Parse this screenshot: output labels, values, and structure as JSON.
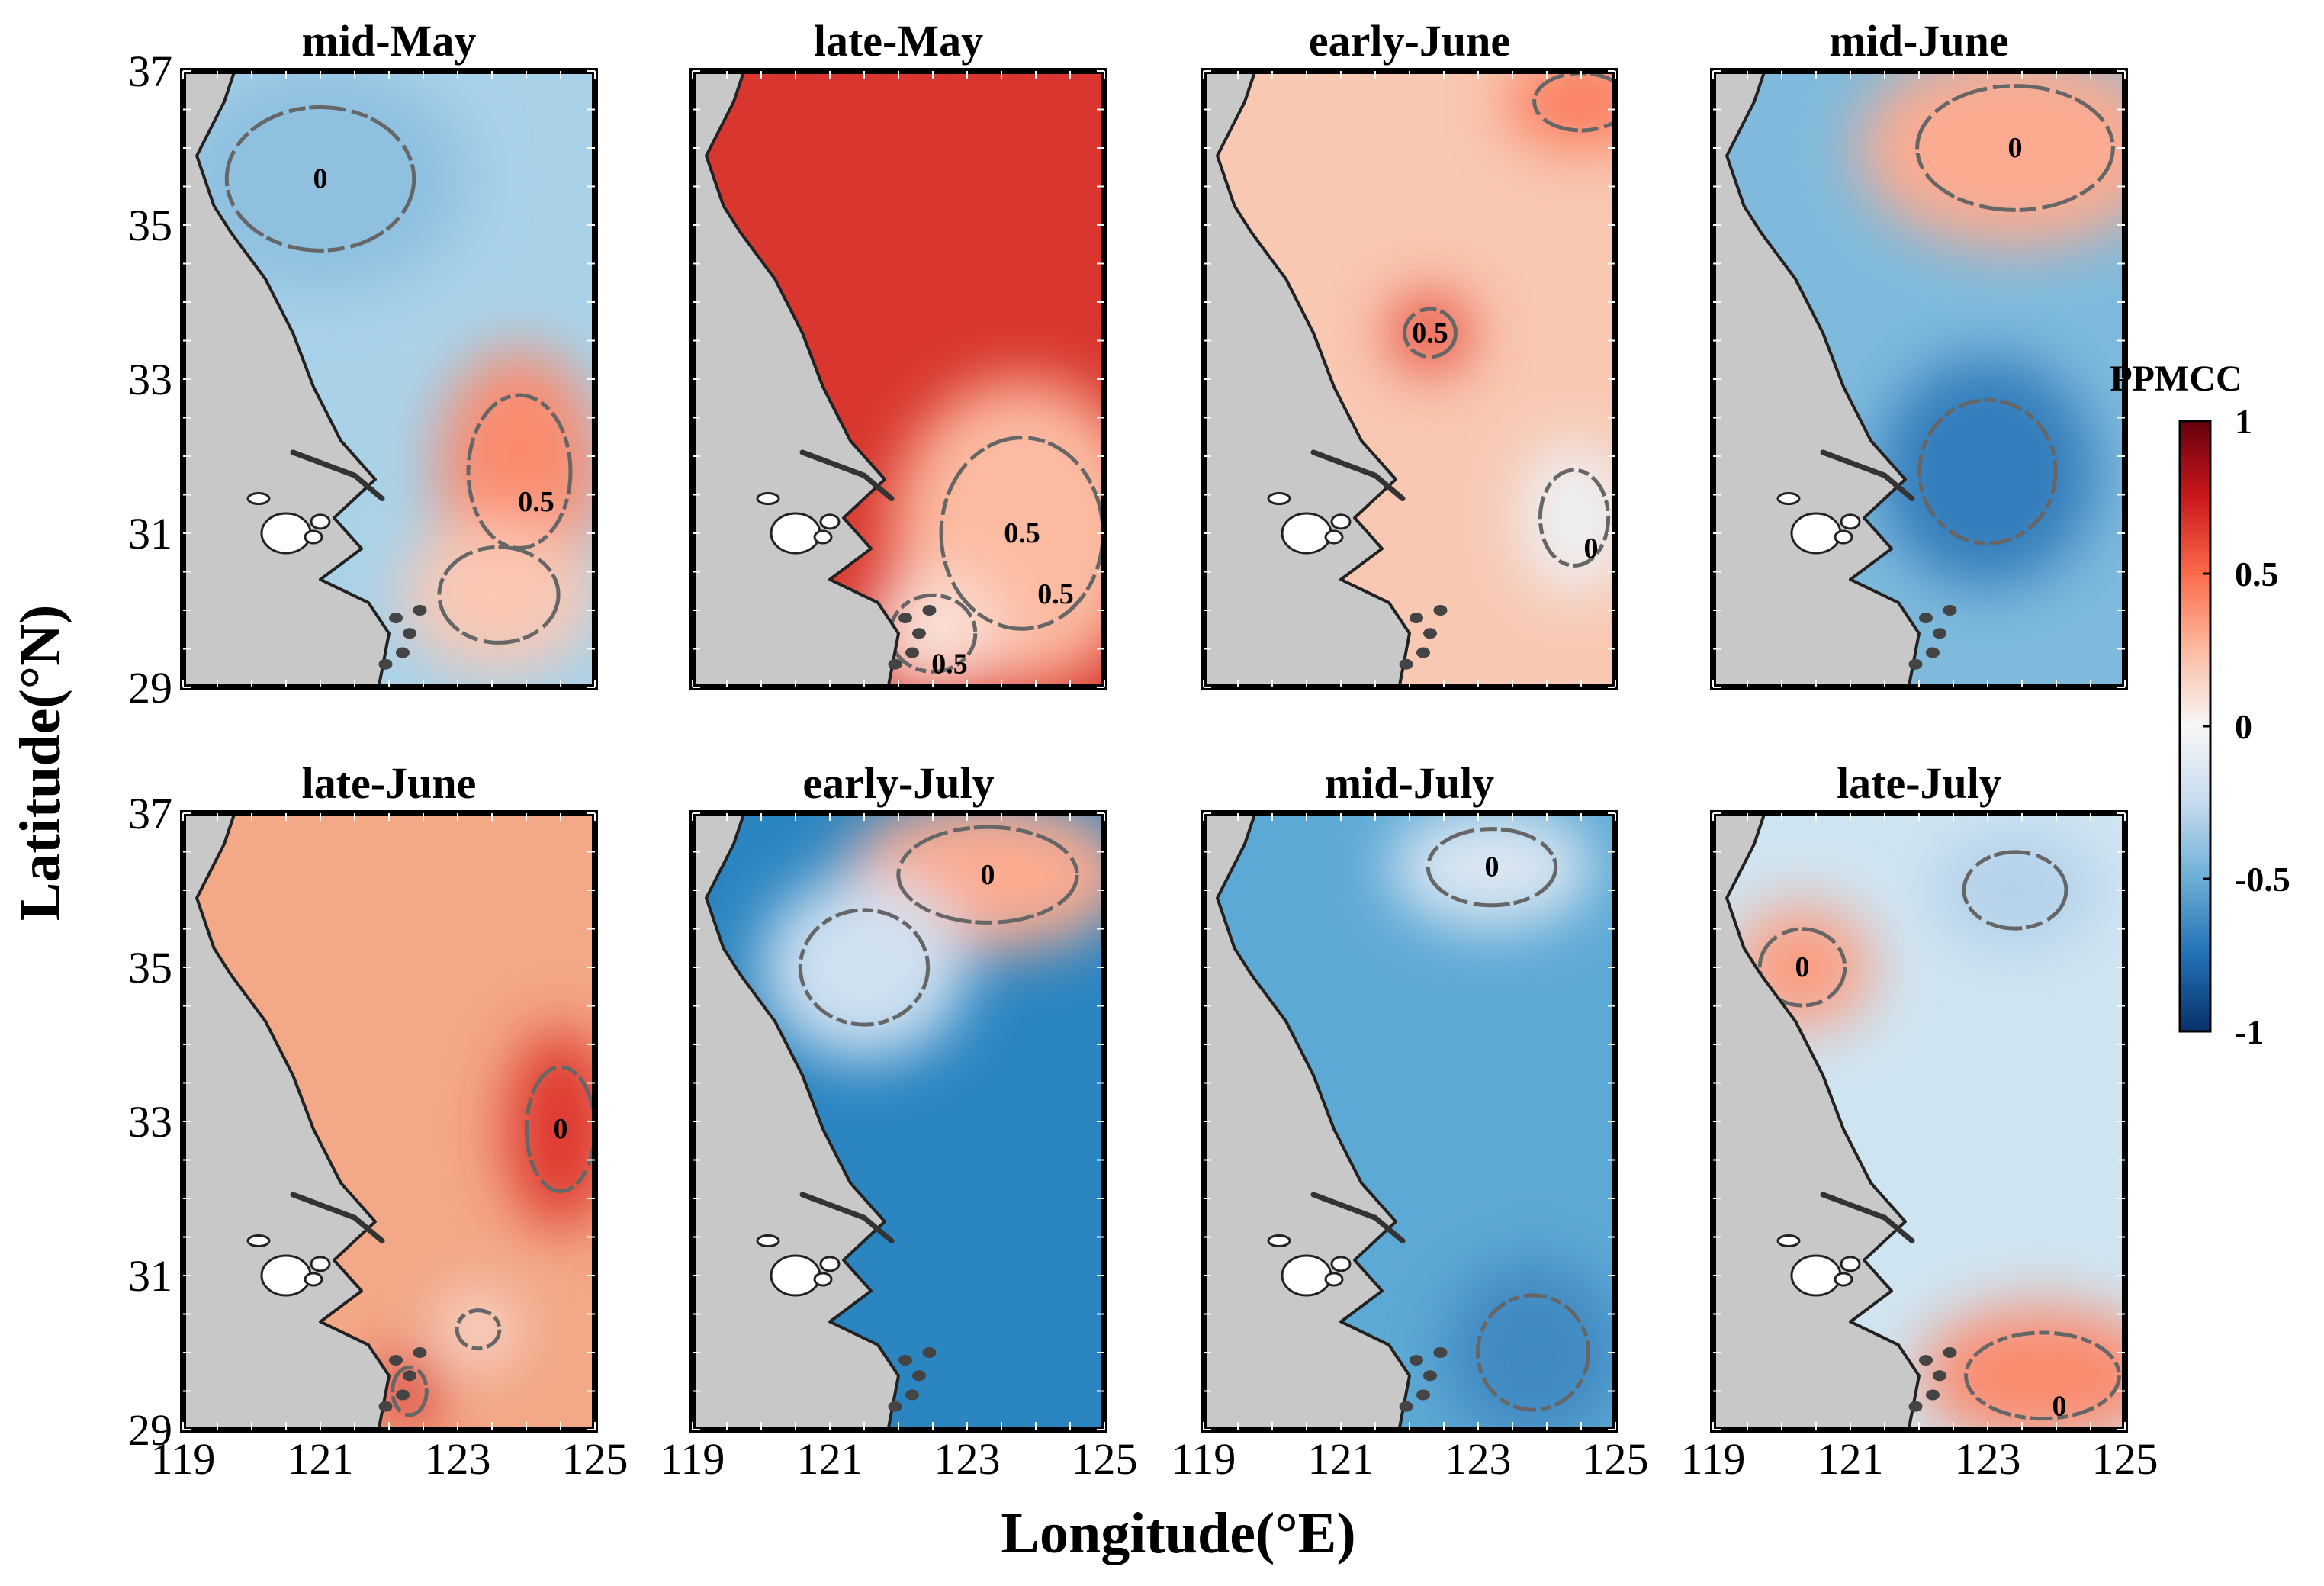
{
  "chart_data": [
    {
      "type": "heatmap",
      "title": "mid-May",
      "base_color": "#a9d2e9",
      "contours": [
        "0",
        "0.5"
      ],
      "zones": [
        {
          "lon": 121.0,
          "lat": 35.6,
          "lon_r": 2.2,
          "lat_r": 1.5,
          "value": -0.4
        },
        {
          "lon": 123.9,
          "lat": 31.8,
          "lon_r": 1.2,
          "lat_r": 1.6,
          "value": 0.4
        },
        {
          "lon": 123.6,
          "lat": 30.2,
          "lon_r": 1.4,
          "lat_r": 1.0,
          "value": 0.2
        }
      ]
    },
    {
      "type": "heatmap",
      "title": "late-May",
      "base_color": "#d8362e",
      "contours": [
        "0.5",
        "0.5",
        "0.5"
      ],
      "zones": [
        {
          "lon": 123.8,
          "lat": 31.0,
          "lon_r": 1.9,
          "lat_r": 2.0,
          "value": 0.25
        },
        {
          "lon": 122.5,
          "lat": 29.7,
          "lon_r": 1.0,
          "lat_r": 0.8,
          "value": 0.1
        }
      ]
    },
    {
      "type": "heatmap",
      "title": "early-June",
      "base_color": "#f8c8b2",
      "contours": [
        "0.5",
        "0"
      ],
      "zones": [
        {
          "lon": 122.3,
          "lat": 33.6,
          "lon_r": 0.6,
          "lat_r": 0.5,
          "value": 0.6
        },
        {
          "lon": 124.4,
          "lat": 31.2,
          "lon_r": 0.8,
          "lat_r": 1.0,
          "value": -0.05
        },
        {
          "lon": 124.5,
          "lat": 36.6,
          "lon_r": 1.1,
          "lat_r": 0.6,
          "value": 0.45
        }
      ]
    },
    {
      "type": "heatmap",
      "title": "mid-June",
      "base_color": "#7fbadc",
      "contours": [
        "0"
      ],
      "zones": [
        {
          "lon": 123.4,
          "lat": 36.0,
          "lon_r": 2.3,
          "lat_r": 1.3,
          "value": 0.3
        },
        {
          "lon": 123.0,
          "lat": 31.8,
          "lon_r": 1.6,
          "lat_r": 1.5,
          "value": -0.7
        }
      ]
    },
    {
      "type": "heatmap",
      "title": "late-June",
      "base_color": "#f3a888",
      "contours": [
        "0"
      ],
      "zones": [
        {
          "lon": 124.5,
          "lat": 32.9,
          "lon_r": 0.8,
          "lat_r": 1.3,
          "value": 0.65
        },
        {
          "lon": 123.3,
          "lat": 30.3,
          "lon_r": 0.5,
          "lat_r": 0.4,
          "value": 0.05
        },
        {
          "lon": 122.3,
          "lat": 29.5,
          "lon_r": 0.4,
          "lat_r": 0.5,
          "value": 0.7
        }
      ]
    },
    {
      "type": "heatmap",
      "title": "early-July",
      "base_color": "#2b85c1",
      "contours": [
        "0"
      ],
      "zones": [
        {
          "lon": 123.3,
          "lat": 36.2,
          "lon_r": 2.1,
          "lat_r": 1.0,
          "value": 0.3
        },
        {
          "lon": 121.5,
          "lat": 35.0,
          "lon_r": 1.5,
          "lat_r": 1.2,
          "value": -0.2
        }
      ]
    },
    {
      "type": "heatmap",
      "title": "mid-July",
      "base_color": "#5da9d5",
      "contours": [
        "0"
      ],
      "zones": [
        {
          "lon": 123.2,
          "lat": 36.3,
          "lon_r": 1.5,
          "lat_r": 0.8,
          "value": -0.15
        },
        {
          "lon": 123.8,
          "lat": 30.0,
          "lon_r": 1.3,
          "lat_r": 1.2,
          "value": -0.65
        }
      ]
    },
    {
      "type": "heatmap",
      "title": "late-July",
      "base_color": "#cfe4f1",
      "contours": [
        "0",
        "0"
      ],
      "zones": [
        {
          "lon": 120.3,
          "lat": 35.0,
          "lon_r": 1.0,
          "lat_r": 0.8,
          "value": 0.35
        },
        {
          "lon": 123.8,
          "lat": 29.7,
          "lon_r": 1.8,
          "lat_r": 0.9,
          "value": 0.4
        },
        {
          "lon": 123.4,
          "lat": 36.0,
          "lon_r": 1.2,
          "lat_r": 0.8,
          "value": -0.3
        }
      ]
    }
  ],
  "axes": {
    "xlabel": "Longitude(°E)",
    "ylabel": "Latitude(°N)",
    "xlim": [
      119,
      125
    ],
    "ylim": [
      29,
      37
    ],
    "xticks": [
      119,
      121,
      123,
      125
    ],
    "yticks": [
      29,
      31,
      33,
      35,
      37
    ]
  },
  "colorbar": {
    "title": "PPMCC",
    "range": [
      -1,
      1
    ],
    "ticks": [
      {
        "value": 1,
        "label": "1"
      },
      {
        "value": 0.5,
        "label": "0.5"
      },
      {
        "value": 0,
        "label": "0"
      },
      {
        "value": -0.5,
        "label": "-0.5"
      },
      {
        "value": -1,
        "label": "-1"
      }
    ],
    "colors": [
      "#08306b",
      "#2171b5",
      "#6baed6",
      "#c6dbef",
      "#f7f7f7",
      "#fcbba1",
      "#fb6a4a",
      "#cb181d",
      "#67000d"
    ]
  },
  "land_color": "#c8c8c8"
}
